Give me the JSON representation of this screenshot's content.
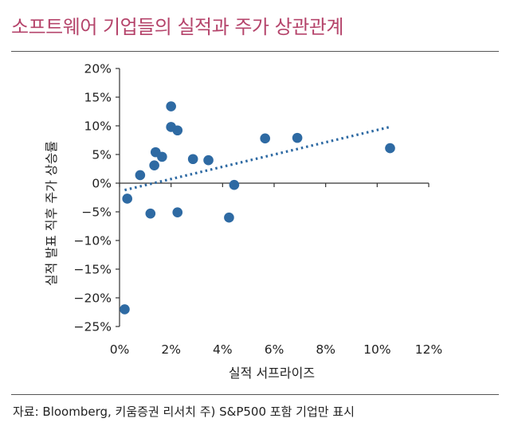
{
  "title": "소프트웨어 기업들의 실적과 주가 상관관계",
  "source": "자료: Bloomberg, 키움증권 리서치 주) S&P500 포함 기업만 표시",
  "colors": {
    "title": "#b5446b",
    "marker": "#2e6aa3",
    "trend": "#2e6aa3"
  },
  "chart_data": {
    "type": "scatter",
    "title": "소프트웨어 기업들의 실적과 주가 상관관계",
    "xlabel": "실적 서프라이즈",
    "ylabel": "실적 발표 직후 주가 상승률",
    "xlim": [
      0,
      12
    ],
    "ylim": [
      -25,
      20
    ],
    "x_ticks": [
      0,
      2,
      4,
      6,
      8,
      10,
      12
    ],
    "y_ticks": [
      20,
      15,
      10,
      5,
      0,
      -5,
      -10,
      -15,
      -20,
      -25
    ],
    "x_tick_labels": [
      "0%",
      "2%",
      "4%",
      "6%",
      "8%",
      "10%",
      "12%"
    ],
    "y_tick_labels": [
      "20%",
      "15%",
      "10%",
      "5%",
      "0%",
      "−5%",
      "−10%",
      "−15%",
      "−20%",
      "−25%"
    ],
    "grid": false,
    "points": [
      {
        "x": 0.2,
        "y": -22.0
      },
      {
        "x": 0.3,
        "y": -2.7
      },
      {
        "x": 0.8,
        "y": 1.4
      },
      {
        "x": 1.2,
        "y": -5.3
      },
      {
        "x": 1.35,
        "y": 3.1
      },
      {
        "x": 1.4,
        "y": 5.4
      },
      {
        "x": 1.65,
        "y": 4.6
      },
      {
        "x": 2.0,
        "y": 13.4
      },
      {
        "x": 2.0,
        "y": 9.8
      },
      {
        "x": 2.25,
        "y": 9.2
      },
      {
        "x": 2.25,
        "y": -5.1
      },
      {
        "x": 2.85,
        "y": 4.2
      },
      {
        "x": 3.45,
        "y": 4.0
      },
      {
        "x": 4.25,
        "y": -6.0
      },
      {
        "x": 4.45,
        "y": -0.3
      },
      {
        "x": 5.65,
        "y": 7.8
      },
      {
        "x": 6.9,
        "y": 7.9
      },
      {
        "x": 10.5,
        "y": 6.1
      }
    ],
    "trendline": {
      "style": "dotted",
      "x": [
        0.2,
        10.5
      ],
      "y": [
        -1.2,
        9.8
      ]
    }
  }
}
